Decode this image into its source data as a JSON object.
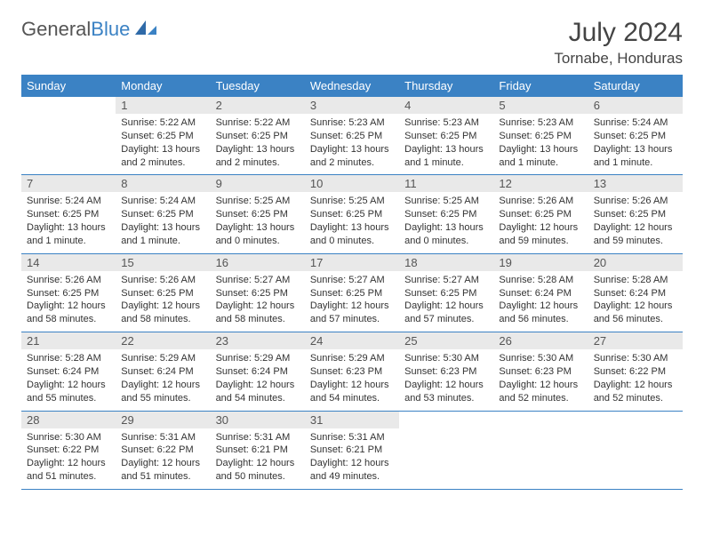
{
  "brand": {
    "part1": "General",
    "part2": "Blue"
  },
  "title": "July 2024",
  "location": "Tornabe, Honduras",
  "colors": {
    "header_bg": "#3b82c4",
    "header_text": "#ffffff",
    "daynum_bg": "#e9e9e9",
    "text": "#333333",
    "border": "#3b82c4"
  },
  "font": {
    "day_fontsize": 11,
    "header_fontsize": 13,
    "title_fontsize": 30
  },
  "weekdays": [
    "Sunday",
    "Monday",
    "Tuesday",
    "Wednesday",
    "Thursday",
    "Friday",
    "Saturday"
  ],
  "weeks": [
    [
      {
        "n": "",
        "sr": "",
        "ss": "",
        "dl": ""
      },
      {
        "n": "1",
        "sr": "Sunrise: 5:22 AM",
        "ss": "Sunset: 6:25 PM",
        "dl": "Daylight: 13 hours and 2 minutes."
      },
      {
        "n": "2",
        "sr": "Sunrise: 5:22 AM",
        "ss": "Sunset: 6:25 PM",
        "dl": "Daylight: 13 hours and 2 minutes."
      },
      {
        "n": "3",
        "sr": "Sunrise: 5:23 AM",
        "ss": "Sunset: 6:25 PM",
        "dl": "Daylight: 13 hours and 2 minutes."
      },
      {
        "n": "4",
        "sr": "Sunrise: 5:23 AM",
        "ss": "Sunset: 6:25 PM",
        "dl": "Daylight: 13 hours and 1 minute."
      },
      {
        "n": "5",
        "sr": "Sunrise: 5:23 AM",
        "ss": "Sunset: 6:25 PM",
        "dl": "Daylight: 13 hours and 1 minute."
      },
      {
        "n": "6",
        "sr": "Sunrise: 5:24 AM",
        "ss": "Sunset: 6:25 PM",
        "dl": "Daylight: 13 hours and 1 minute."
      }
    ],
    [
      {
        "n": "7",
        "sr": "Sunrise: 5:24 AM",
        "ss": "Sunset: 6:25 PM",
        "dl": "Daylight: 13 hours and 1 minute."
      },
      {
        "n": "8",
        "sr": "Sunrise: 5:24 AM",
        "ss": "Sunset: 6:25 PM",
        "dl": "Daylight: 13 hours and 1 minute."
      },
      {
        "n": "9",
        "sr": "Sunrise: 5:25 AM",
        "ss": "Sunset: 6:25 PM",
        "dl": "Daylight: 13 hours and 0 minutes."
      },
      {
        "n": "10",
        "sr": "Sunrise: 5:25 AM",
        "ss": "Sunset: 6:25 PM",
        "dl": "Daylight: 13 hours and 0 minutes."
      },
      {
        "n": "11",
        "sr": "Sunrise: 5:25 AM",
        "ss": "Sunset: 6:25 PM",
        "dl": "Daylight: 13 hours and 0 minutes."
      },
      {
        "n": "12",
        "sr": "Sunrise: 5:26 AM",
        "ss": "Sunset: 6:25 PM",
        "dl": "Daylight: 12 hours and 59 minutes."
      },
      {
        "n": "13",
        "sr": "Sunrise: 5:26 AM",
        "ss": "Sunset: 6:25 PM",
        "dl": "Daylight: 12 hours and 59 minutes."
      }
    ],
    [
      {
        "n": "14",
        "sr": "Sunrise: 5:26 AM",
        "ss": "Sunset: 6:25 PM",
        "dl": "Daylight: 12 hours and 58 minutes."
      },
      {
        "n": "15",
        "sr": "Sunrise: 5:26 AM",
        "ss": "Sunset: 6:25 PM",
        "dl": "Daylight: 12 hours and 58 minutes."
      },
      {
        "n": "16",
        "sr": "Sunrise: 5:27 AM",
        "ss": "Sunset: 6:25 PM",
        "dl": "Daylight: 12 hours and 58 minutes."
      },
      {
        "n": "17",
        "sr": "Sunrise: 5:27 AM",
        "ss": "Sunset: 6:25 PM",
        "dl": "Daylight: 12 hours and 57 minutes."
      },
      {
        "n": "18",
        "sr": "Sunrise: 5:27 AM",
        "ss": "Sunset: 6:25 PM",
        "dl": "Daylight: 12 hours and 57 minutes."
      },
      {
        "n": "19",
        "sr": "Sunrise: 5:28 AM",
        "ss": "Sunset: 6:24 PM",
        "dl": "Daylight: 12 hours and 56 minutes."
      },
      {
        "n": "20",
        "sr": "Sunrise: 5:28 AM",
        "ss": "Sunset: 6:24 PM",
        "dl": "Daylight: 12 hours and 56 minutes."
      }
    ],
    [
      {
        "n": "21",
        "sr": "Sunrise: 5:28 AM",
        "ss": "Sunset: 6:24 PM",
        "dl": "Daylight: 12 hours and 55 minutes."
      },
      {
        "n": "22",
        "sr": "Sunrise: 5:29 AM",
        "ss": "Sunset: 6:24 PM",
        "dl": "Daylight: 12 hours and 55 minutes."
      },
      {
        "n": "23",
        "sr": "Sunrise: 5:29 AM",
        "ss": "Sunset: 6:24 PM",
        "dl": "Daylight: 12 hours and 54 minutes."
      },
      {
        "n": "24",
        "sr": "Sunrise: 5:29 AM",
        "ss": "Sunset: 6:23 PM",
        "dl": "Daylight: 12 hours and 54 minutes."
      },
      {
        "n": "25",
        "sr": "Sunrise: 5:30 AM",
        "ss": "Sunset: 6:23 PM",
        "dl": "Daylight: 12 hours and 53 minutes."
      },
      {
        "n": "26",
        "sr": "Sunrise: 5:30 AM",
        "ss": "Sunset: 6:23 PM",
        "dl": "Daylight: 12 hours and 52 minutes."
      },
      {
        "n": "27",
        "sr": "Sunrise: 5:30 AM",
        "ss": "Sunset: 6:22 PM",
        "dl": "Daylight: 12 hours and 52 minutes."
      }
    ],
    [
      {
        "n": "28",
        "sr": "Sunrise: 5:30 AM",
        "ss": "Sunset: 6:22 PM",
        "dl": "Daylight: 12 hours and 51 minutes."
      },
      {
        "n": "29",
        "sr": "Sunrise: 5:31 AM",
        "ss": "Sunset: 6:22 PM",
        "dl": "Daylight: 12 hours and 51 minutes."
      },
      {
        "n": "30",
        "sr": "Sunrise: 5:31 AM",
        "ss": "Sunset: 6:21 PM",
        "dl": "Daylight: 12 hours and 50 minutes."
      },
      {
        "n": "31",
        "sr": "Sunrise: 5:31 AM",
        "ss": "Sunset: 6:21 PM",
        "dl": "Daylight: 12 hours and 49 minutes."
      },
      {
        "n": "",
        "sr": "",
        "ss": "",
        "dl": ""
      },
      {
        "n": "",
        "sr": "",
        "ss": "",
        "dl": ""
      },
      {
        "n": "",
        "sr": "",
        "ss": "",
        "dl": ""
      }
    ]
  ]
}
